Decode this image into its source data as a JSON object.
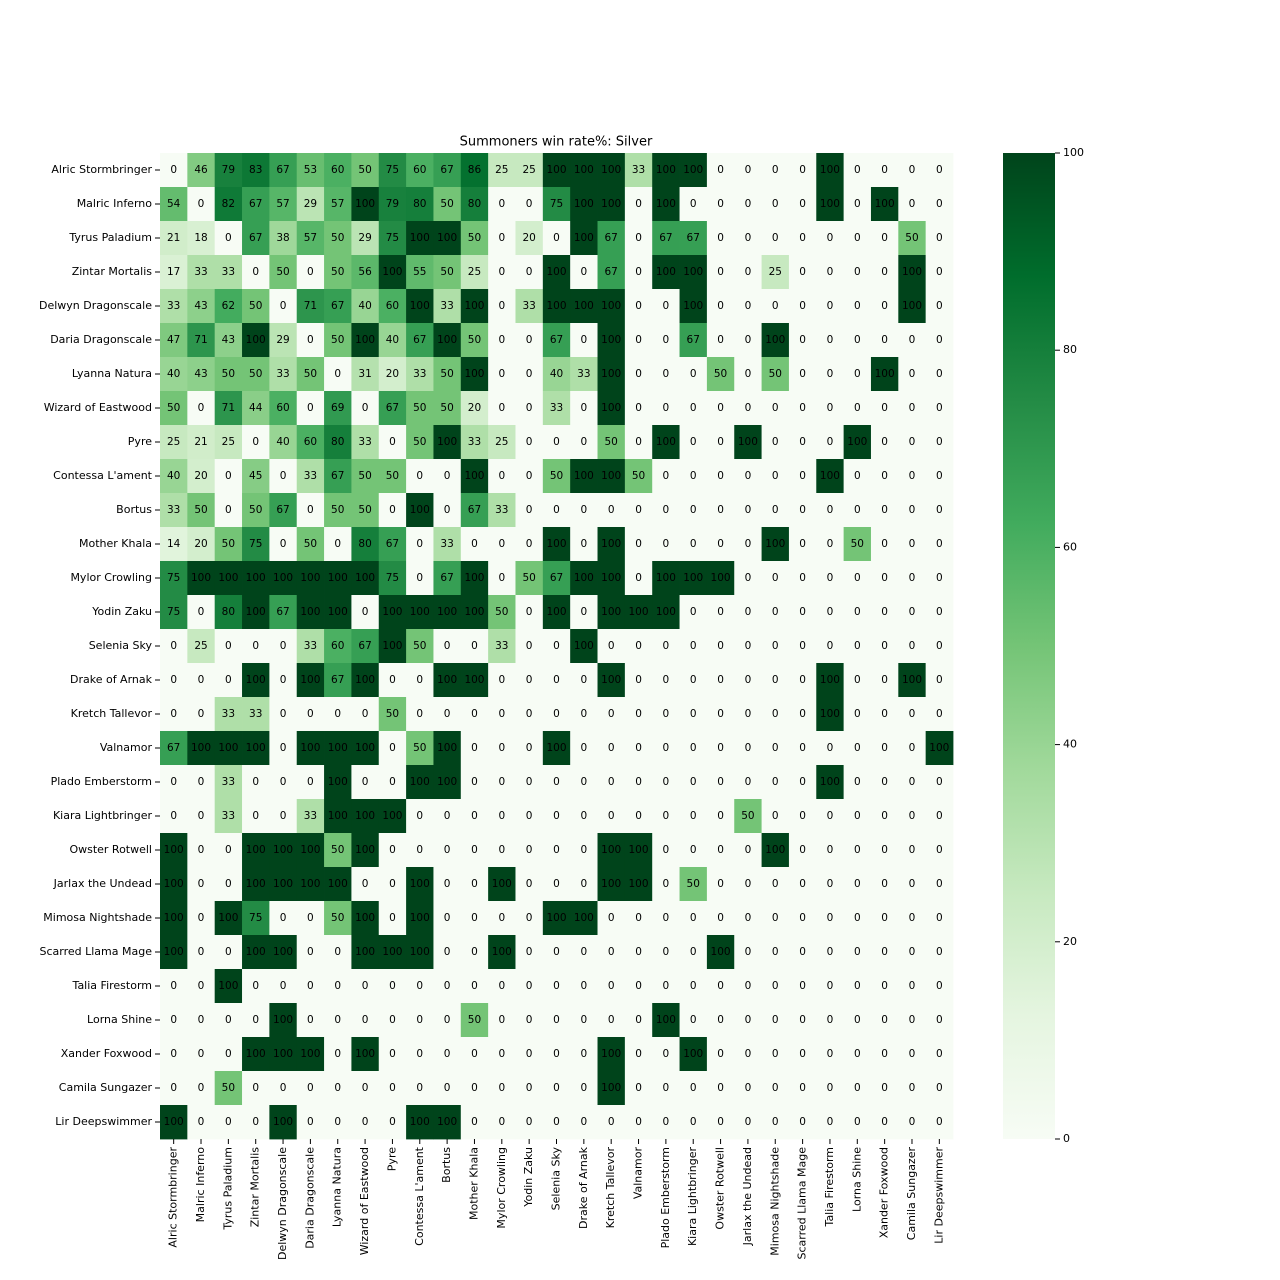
{
  "chart_data": {
    "type": "heatmap",
    "title": "Summoners win rate%: Silver",
    "x_categories": [
      "Alric Stormbringer",
      "Malric Inferno",
      "Tyrus Paladium",
      "Zintar Mortalis",
      "Delwyn Dragonscale",
      "Daria Dragonscale",
      "Lyanna Natura",
      "Wizard of Eastwood",
      "Pyre",
      "Contessa L'ament",
      "Bortus",
      "Mother Khala",
      "Mylor Crowling",
      "Yodin Zaku",
      "Selenia Sky",
      "Drake of Arnak",
      "Kretch Tallevor",
      "Valnamor",
      "Plado Emberstorm",
      "Kiara Lightbringer",
      "Owster Rotwell",
      "Jarlax the Undead",
      "Mimosa Nightshade",
      "Scarred Llama Mage",
      "Talia Firestorm",
      "Lorna Shine",
      "Xander Foxwood",
      "Camila Sungazer",
      "Lir Deepswimmer"
    ],
    "y_categories": [
      "Alric Stormbringer",
      "Malric Inferno",
      "Tyrus Paladium",
      "Zintar Mortalis",
      "Delwyn Dragonscale",
      "Daria Dragonscale",
      "Lyanna Natura",
      "Wizard of Eastwood",
      "Pyre",
      "Contessa L'ament",
      "Bortus",
      "Mother Khala",
      "Mylor Crowling",
      "Yodin Zaku",
      "Selenia Sky",
      "Drake of Arnak",
      "Kretch Tallevor",
      "Valnamor",
      "Plado Emberstorm",
      "Kiara Lightbringer",
      "Owster Rotwell",
      "Jarlax the Undead",
      "Mimosa Nightshade",
      "Scarred Llama Mage",
      "Talia Firestorm",
      "Lorna Shine",
      "Xander Foxwood",
      "Camila Sungazer",
      "Lir Deepswimmer"
    ],
    "values": [
      [
        0,
        46,
        79,
        83,
        67,
        53,
        60,
        50,
        75,
        60,
        67,
        86,
        25,
        25,
        100,
        100,
        100,
        33,
        100,
        100,
        0,
        0,
        0,
        0,
        100,
        0,
        0,
        0,
        0
      ],
      [
        54,
        0,
        82,
        67,
        57,
        29,
        57,
        100,
        79,
        80,
        50,
        80,
        0,
        0,
        75,
        100,
        100,
        0,
        100,
        0,
        0,
        0,
        0,
        0,
        100,
        0,
        100,
        0,
        0
      ],
      [
        21,
        18,
        0,
        67,
        38,
        57,
        50,
        29,
        75,
        100,
        100,
        50,
        0,
        20,
        0,
        100,
        67,
        0,
        67,
        67,
        0,
        0,
        0,
        0,
        0,
        0,
        0,
        50,
        0
      ],
      [
        17,
        33,
        33,
        0,
        50,
        0,
        50,
        56,
        100,
        55,
        50,
        25,
        0,
        0,
        100,
        0,
        67,
        0,
        100,
        100,
        0,
        0,
        25,
        0,
        0,
        0,
        0,
        100,
        0
      ],
      [
        33,
        43,
        62,
        50,
        0,
        71,
        67,
        40,
        60,
        100,
        33,
        100,
        0,
        33,
        100,
        100,
        100,
        0,
        0,
        100,
        0,
        0,
        0,
        0,
        0,
        0,
        0,
        100,
        0
      ],
      [
        47,
        71,
        43,
        100,
        29,
        0,
        50,
        100,
        40,
        67,
        100,
        50,
        0,
        0,
        67,
        0,
        100,
        0,
        0,
        67,
        0,
        0,
        100,
        0,
        0,
        0,
        0,
        0,
        0
      ],
      [
        40,
        43,
        50,
        50,
        33,
        50,
        0,
        31,
        20,
        33,
        50,
        100,
        0,
        0,
        40,
        33,
        100,
        0,
        0,
        0,
        50,
        0,
        50,
        0,
        0,
        0,
        100,
        0,
        0
      ],
      [
        50,
        0,
        71,
        44,
        60,
        0,
        69,
        0,
        67,
        50,
        50,
        20,
        0,
        0,
        33,
        0,
        100,
        0,
        0,
        0,
        0,
        0,
        0,
        0,
        0,
        0,
        0,
        0,
        0
      ],
      [
        25,
        21,
        25,
        0,
        40,
        60,
        80,
        33,
        0,
        50,
        100,
        33,
        25,
        0,
        0,
        0,
        50,
        0,
        100,
        0,
        0,
        100,
        0,
        0,
        0,
        100,
        0,
        0,
        0
      ],
      [
        40,
        20,
        0,
        45,
        0,
        33,
        67,
        50,
        50,
        0,
        0,
        100,
        0,
        0,
        50,
        100,
        100,
        50,
        0,
        0,
        0,
        0,
        0,
        0,
        100,
        0,
        0,
        0,
        0
      ],
      [
        33,
        50,
        0,
        50,
        67,
        0,
        50,
        50,
        0,
        100,
        0,
        67,
        33,
        0,
        0,
        0,
        0,
        0,
        0,
        0,
        0,
        0,
        0,
        0,
        0,
        0,
        0,
        0,
        0
      ],
      [
        14,
        20,
        50,
        75,
        0,
        50,
        0,
        80,
        67,
        0,
        33,
        0,
        0,
        0,
        100,
        0,
        100,
        0,
        0,
        0,
        0,
        0,
        100,
        0,
        0,
        50,
        0,
        0,
        0
      ],
      [
        75,
        100,
        100,
        100,
        100,
        100,
        100,
        100,
        75,
        0,
        67,
        100,
        0,
        50,
        67,
        100,
        100,
        0,
        100,
        100,
        100,
        0,
        0,
        0,
        0,
        0,
        0,
        0,
        0
      ],
      [
        75,
        0,
        80,
        100,
        67,
        100,
        100,
        0,
        100,
        100,
        100,
        100,
        50,
        0,
        100,
        0,
        100,
        100,
        100,
        0,
        0,
        0,
        0,
        0,
        0,
        0,
        0,
        0,
        0
      ],
      [
        0,
        25,
        0,
        0,
        0,
        33,
        60,
        67,
        100,
        50,
        0,
        0,
        33,
        0,
        0,
        100,
        0,
        0,
        0,
        0,
        0,
        0,
        0,
        0,
        0,
        0,
        0,
        0,
        0
      ],
      [
        0,
        0,
        0,
        100,
        0,
        100,
        67,
        100,
        0,
        0,
        100,
        100,
        0,
        0,
        0,
        0,
        100,
        0,
        0,
        0,
        0,
        0,
        0,
        0,
        100,
        0,
        0,
        100,
        0
      ],
      [
        0,
        0,
        33,
        33,
        0,
        0,
        0,
        0,
        50,
        0,
        0,
        0,
        0,
        0,
        0,
        0,
        0,
        0,
        0,
        0,
        0,
        0,
        0,
        0,
        100,
        0,
        0,
        0,
        0
      ],
      [
        67,
        100,
        100,
        100,
        0,
        100,
        100,
        100,
        0,
        50,
        100,
        0,
        0,
        0,
        100,
        0,
        0,
        0,
        0,
        0,
        0,
        0,
        0,
        0,
        0,
        0,
        0,
        0,
        100
      ],
      [
        0,
        0,
        33,
        0,
        0,
        0,
        100,
        0,
        0,
        100,
        100,
        0,
        0,
        0,
        0,
        0,
        0,
        0,
        0,
        0,
        0,
        0,
        0,
        0,
        100,
        0,
        0,
        0,
        0
      ],
      [
        0,
        0,
        33,
        0,
        0,
        33,
        100,
        100,
        100,
        0,
        0,
        0,
        0,
        0,
        0,
        0,
        0,
        0,
        0,
        0,
        0,
        50,
        0,
        0,
        0,
        0,
        0,
        0,
        0
      ],
      [
        100,
        0,
        0,
        100,
        100,
        100,
        50,
        100,
        0,
        0,
        0,
        0,
        0,
        0,
        0,
        0,
        100,
        100,
        0,
        0,
        0,
        0,
        100,
        0,
        0,
        0,
        0,
        0,
        0
      ],
      [
        100,
        0,
        0,
        100,
        100,
        100,
        100,
        0,
        0,
        100,
        0,
        0,
        100,
        0,
        0,
        0,
        100,
        100,
        0,
        50,
        0,
        0,
        0,
        0,
        0,
        0,
        0,
        0,
        0
      ],
      [
        100,
        0,
        100,
        75,
        0,
        0,
        50,
        100,
        0,
        100,
        0,
        0,
        0,
        0,
        100,
        100,
        0,
        0,
        0,
        0,
        0,
        0,
        0,
        0,
        0,
        0,
        0,
        0,
        0
      ],
      [
        100,
        0,
        0,
        100,
        100,
        0,
        0,
        100,
        100,
        100,
        0,
        0,
        100,
        0,
        0,
        0,
        0,
        0,
        0,
        0,
        100,
        0,
        0,
        0,
        0,
        0,
        0,
        0,
        0
      ],
      [
        0,
        0,
        100,
        0,
        0,
        0,
        0,
        0,
        0,
        0,
        0,
        0,
        0,
        0,
        0,
        0,
        0,
        0,
        0,
        0,
        0,
        0,
        0,
        0,
        0,
        0,
        0,
        0,
        0
      ],
      [
        0,
        0,
        0,
        0,
        100,
        0,
        0,
        0,
        0,
        0,
        0,
        50,
        0,
        0,
        0,
        0,
        0,
        0,
        100,
        0,
        0,
        0,
        0,
        0,
        0,
        0,
        0,
        0,
        0
      ],
      [
        0,
        0,
        0,
        100,
        100,
        100,
        0,
        100,
        0,
        0,
        0,
        0,
        0,
        0,
        0,
        0,
        100,
        0,
        0,
        100,
        0,
        0,
        0,
        0,
        0,
        0,
        0,
        0,
        0
      ],
      [
        0,
        0,
        50,
        0,
        0,
        0,
        0,
        0,
        0,
        0,
        0,
        0,
        0,
        0,
        0,
        0,
        100,
        0,
        0,
        0,
        0,
        0,
        0,
        0,
        0,
        0,
        0,
        0,
        0
      ],
      [
        100,
        0,
        0,
        0,
        100,
        0,
        0,
        0,
        0,
        100,
        100,
        0,
        0,
        0,
        0,
        0,
        0,
        0,
        0,
        0,
        0,
        0,
        0,
        0,
        0,
        0,
        0,
        0,
        0
      ]
    ],
    "clim": [
      0,
      100
    ],
    "cticks": [
      0,
      20,
      40,
      60,
      80,
      100
    ],
    "colors": [
      "#f7fcf5",
      "#e5f5e0",
      "#c7e9c0",
      "#a1d99b",
      "#74c476",
      "#41ab5d",
      "#238b45",
      "#006d2c",
      "#00441b"
    ]
  }
}
